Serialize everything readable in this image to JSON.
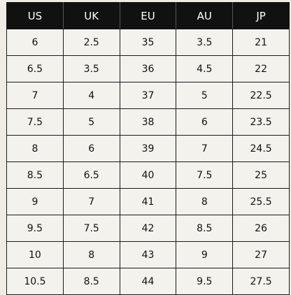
{
  "table": {
    "headers": [
      "US",
      "UK",
      "EU",
      "AU",
      "JP"
    ],
    "rows": [
      [
        "6",
        "2.5",
        "35",
        "3.5",
        "21"
      ],
      [
        "6.5",
        "3.5",
        "36",
        "4.5",
        "22"
      ],
      [
        "7",
        "4",
        "37",
        "5",
        "22.5"
      ],
      [
        "7.5",
        "5",
        "38",
        "6",
        "23.5"
      ],
      [
        "8",
        "6",
        "39",
        "7",
        "24.5"
      ],
      [
        "8.5",
        "6.5",
        "40",
        "7.5",
        "25"
      ],
      [
        "9",
        "7",
        "41",
        "8",
        "25.5"
      ],
      [
        "9.5",
        "7.5",
        "42",
        "8.5",
        "26"
      ],
      [
        "10",
        "8",
        "43",
        "9",
        "27"
      ],
      [
        "10.5",
        "8.5",
        "44",
        "9.5",
        "27.5"
      ]
    ]
  },
  "colors": {
    "header_bg": "#111111",
    "header_text": "#ffffff",
    "cell_bg": "#f4f2ed",
    "border": "#1a1a1a"
  }
}
